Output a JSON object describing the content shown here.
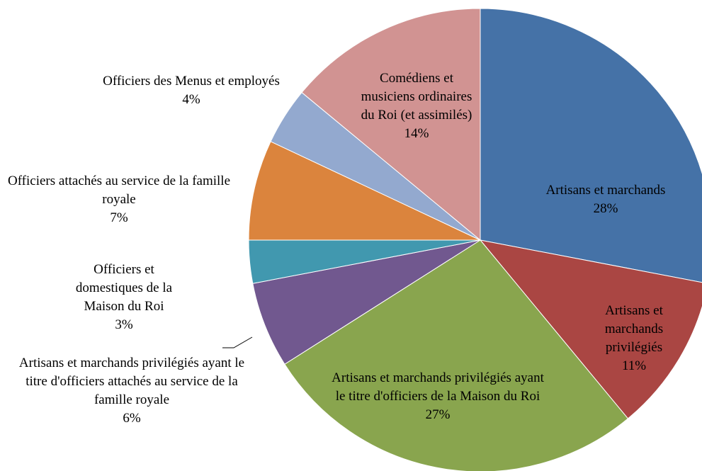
{
  "chart_data": {
    "type": "pie",
    "categories": [
      "Artisans et marchands",
      "Artisans et marchands privilégiés",
      "Artisans et marchands privilégiés ayant le titre d'officiers de la Maison du Roi",
      "Artisans et marchands privilégiés ayant le titre d'officiers attachés au service de la famille royale",
      "Officiers et domestiques de la Maison du Roi",
      "Officiers attachés au service de la famille royale",
      "Officiers des Menus et employés",
      "Comédiens et musiciens ordinaires du Roi (et assimilés)"
    ],
    "values": [
      28,
      11,
      27,
      6,
      3,
      7,
      4,
      14
    ],
    "value_labels": [
      "28%",
      "11%",
      "27%",
      "6%",
      "3%",
      "7%",
      "4%",
      "14%"
    ],
    "colors": [
      "#4572a7",
      "#aa4643",
      "#89a54e",
      "#71588f",
      "#4198af",
      "#db843d",
      "#93a9cf",
      "#d19392"
    ]
  }
}
